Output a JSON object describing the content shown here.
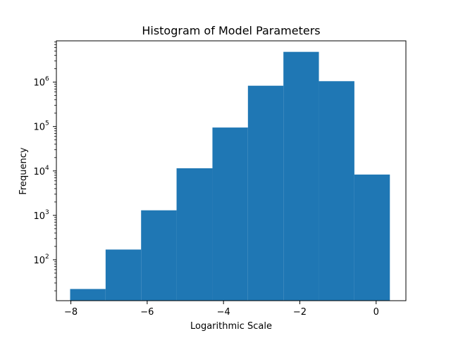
{
  "chart_data": {
    "type": "bar",
    "title": "Histogram of Model Parameters",
    "xlabel": "Logarithmic Scale",
    "ylabel": "Frequency",
    "y_scale": "log",
    "grid": false,
    "legend": "none",
    "bar_color": "#1f77b4",
    "xlim": [
      -8.38,
      0.78
    ],
    "ylim": [
      12,
      8500000
    ],
    "bin_edges": [
      -8.02,
      -7.09,
      -6.16,
      -5.23,
      -4.29,
      -3.36,
      -2.43,
      -1.5,
      -0.57,
      0.36
    ],
    "values": [
      22,
      170,
      1300,
      11500,
      95000,
      830000,
      4800000,
      1050000,
      8300
    ],
    "x_ticks": [
      {
        "value": -8,
        "label": "−8"
      },
      {
        "value": -6,
        "label": "−6"
      },
      {
        "value": -4,
        "label": "−4"
      },
      {
        "value": -2,
        "label": "−2"
      },
      {
        "value": 0,
        "label": "0"
      }
    ],
    "y_ticks": [
      {
        "value": 100,
        "base": "10",
        "exp": "2"
      },
      {
        "value": 1000,
        "base": "10",
        "exp": "3"
      },
      {
        "value": 10000,
        "base": "10",
        "exp": "4"
      },
      {
        "value": 100000,
        "base": "10",
        "exp": "5"
      },
      {
        "value": 1000000,
        "base": "10",
        "exp": "6"
      }
    ]
  }
}
